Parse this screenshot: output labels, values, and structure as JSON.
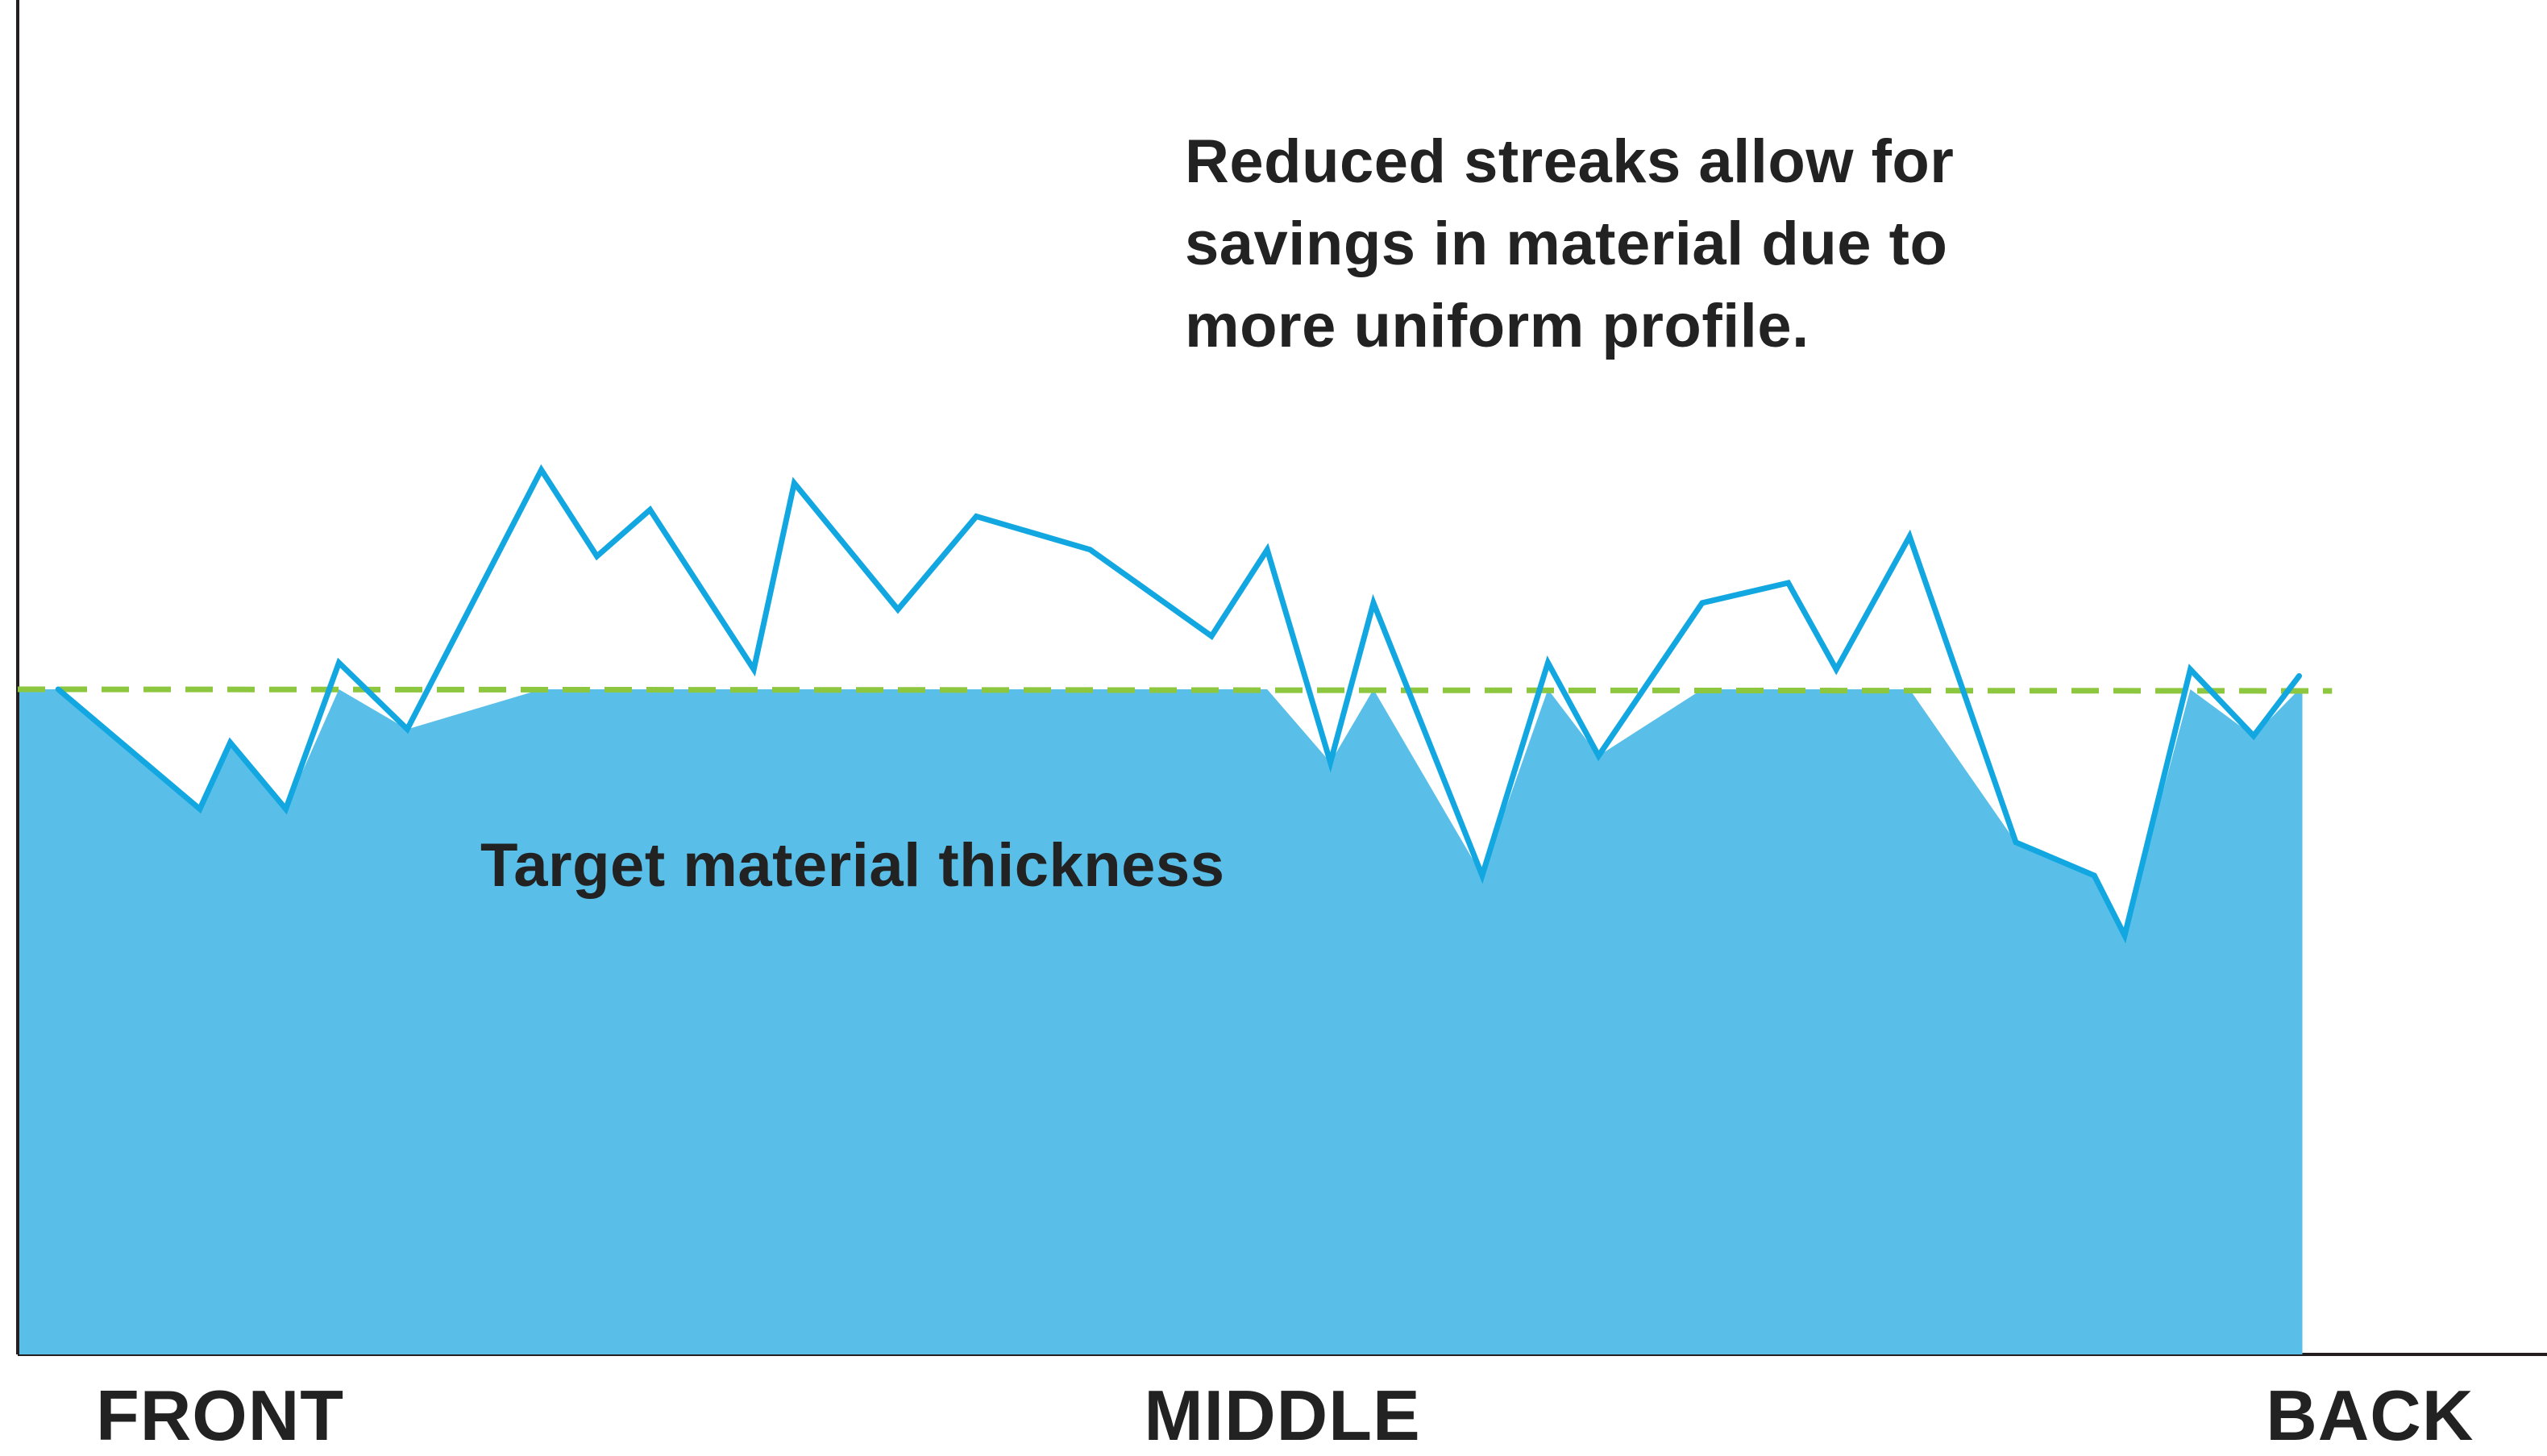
{
  "chart_data": {
    "type": "area",
    "categories": [
      "FRONT",
      "MIDDLE",
      "BACK"
    ],
    "category_positions": [
      0.08,
      0.5,
      0.93
    ],
    "annotations": [
      "Reduced streaks allow for",
      "savings in material due to",
      "more uniform profile."
    ],
    "target_label": "Target material thickness",
    "target_value": 100,
    "ylim": [
      0,
      200
    ],
    "xlim": [
      0,
      1
    ],
    "grid": false,
    "legend": "none",
    "series": [
      {
        "points": [
          [
            0.016,
            100
          ],
          [
            0.072,
            82
          ],
          [
            0.084,
            92
          ],
          [
            0.106,
            82
          ],
          [
            0.127,
            104
          ],
          [
            0.154,
            94
          ],
          [
            0.207,
            133
          ],
          [
            0.229,
            120
          ],
          [
            0.25,
            127
          ],
          [
            0.291,
            103
          ],
          [
            0.307,
            131
          ],
          [
            0.348,
            112
          ],
          [
            0.379,
            126
          ],
          [
            0.424,
            121
          ],
          [
            0.472,
            108
          ],
          [
            0.494,
            121
          ],
          [
            0.519,
            89
          ],
          [
            0.536,
            113
          ],
          [
            0.579,
            72
          ],
          [
            0.605,
            104
          ],
          [
            0.625,
            90
          ],
          [
            0.666,
            113
          ],
          [
            0.7,
            116
          ],
          [
            0.719,
            103
          ],
          [
            0.748,
            123
          ],
          [
            0.79,
            77
          ],
          [
            0.821,
            72
          ],
          [
            0.833,
            63
          ],
          [
            0.859,
            103
          ],
          [
            0.884,
            93
          ],
          [
            0.902,
            102
          ]
        ]
      }
    ],
    "colors": {
      "fill": "#59bfe9",
      "line": "#12a7e0",
      "target": "#8dc63f",
      "axis": "#231f20",
      "text": "#222222"
    }
  }
}
